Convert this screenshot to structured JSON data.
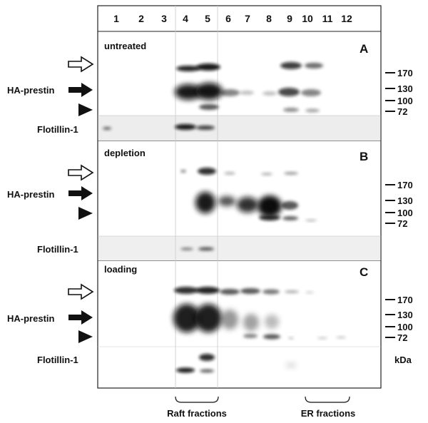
{
  "lanes": [
    "1",
    "2",
    "3",
    "4",
    "5",
    "6",
    "7",
    "8",
    "9",
    "10",
    "11",
    "12"
  ],
  "panels": [
    {
      "condition": "untreated",
      "letter": "A"
    },
    {
      "condition": "depletion",
      "letter": "B"
    },
    {
      "condition": "loading",
      "letter": "C"
    }
  ],
  "row_labels": {
    "prestin": "HA-prestin",
    "flotillin": "Flotillin-1"
  },
  "markers": [
    "170",
    "130",
    "100",
    "72"
  ],
  "unit": "kDa",
  "fractions": {
    "raft": "Raft fractions",
    "er": "ER fractions"
  },
  "colors": {
    "frame": "#222222",
    "band": "#111111",
    "flot_bg": "#ededed"
  }
}
